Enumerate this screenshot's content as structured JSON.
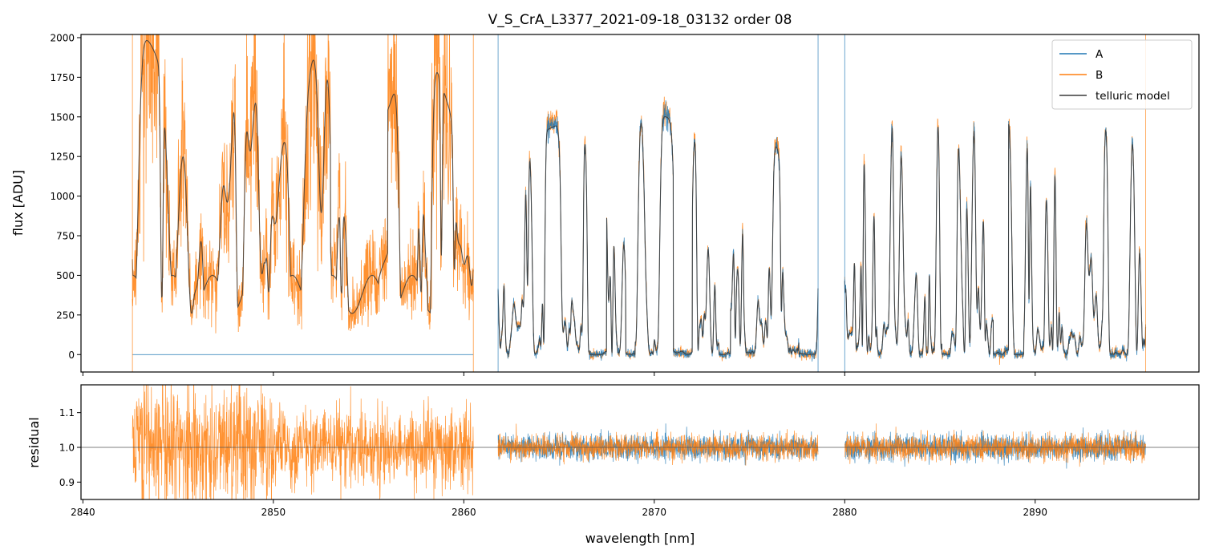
{
  "chart_data": [
    {
      "type": "line",
      "title": "V_S_CrA_L3377_2021-09-18_03132  order 08",
      "xlabel": "",
      "ylabel": "flux [ADU]",
      "xlim": [
        2839.9,
        2898.6
      ],
      "ylim": [
        -110,
        2020
      ],
      "y_ticks": [
        0,
        250,
        500,
        750,
        1000,
        1250,
        1500,
        1750,
        2000
      ],
      "x_ticks": [
        2840,
        2850,
        2860,
        2870,
        2880,
        2890
      ],
      "legend_position": "top-right",
      "series": [
        {
          "name": "A",
          "color": "#1f77b4",
          "segments": [
            [
              2842.6,
              2860.5
            ],
            [
              2861.8,
              2878.6
            ],
            [
              2880.0,
              2895.8
            ]
          ]
        },
        {
          "name": "B",
          "color": "#ff7f0e",
          "segments": [
            [
              2842.6,
              2860.5
            ],
            [
              2861.8,
              2878.6
            ],
            [
              2880.0,
              2895.8
            ]
          ]
        },
        {
          "name": "telluric model",
          "color": "#3a3a3a",
          "segments": [
            [
              2842.6,
              2860.5
            ],
            [
              2861.8,
              2878.6
            ],
            [
              2880.0,
              2895.8
            ]
          ]
        }
      ]
    },
    {
      "type": "line",
      "title": "",
      "xlabel": "wavelength [nm]",
      "ylabel": "residual",
      "xlim": [
        2839.9,
        2898.6
      ],
      "ylim": [
        0.85,
        1.18
      ],
      "y_ticks": [
        0.9,
        1.0,
        1.1
      ],
      "y_tick_labels": [
        "0.9",
        "1.0",
        "1.1"
      ],
      "x_ticks": [
        2840,
        2850,
        2860,
        2870,
        2880,
        2890
      ],
      "reference_line": 1.0,
      "series": [
        {
          "color": "#1f77b4"
        },
        {
          "color": "#ff7f0e"
        }
      ]
    }
  ]
}
